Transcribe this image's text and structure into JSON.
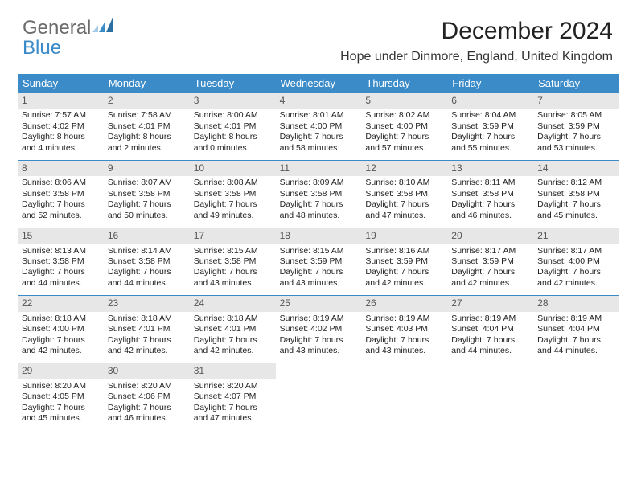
{
  "brand": {
    "line1": "General",
    "line2": "Blue",
    "icon_colors": [
      "#a7cbe6",
      "#3b8bc8",
      "#2b6fa3"
    ]
  },
  "title": "December 2024",
  "location": "Hope under Dinmore, England, United Kingdom",
  "colors": {
    "header_bg": "#3b8bc8",
    "daynum_bg": "#e7e7e7",
    "rule": "#3b8bc8"
  },
  "day_headers": [
    "Sunday",
    "Monday",
    "Tuesday",
    "Wednesday",
    "Thursday",
    "Friday",
    "Saturday"
  ],
  "weeks": [
    [
      {
        "n": "1",
        "sr": "Sunrise: 7:57 AM",
        "ss": "Sunset: 4:02 PM",
        "d1": "Daylight: 8 hours",
        "d2": "and 4 minutes."
      },
      {
        "n": "2",
        "sr": "Sunrise: 7:58 AM",
        "ss": "Sunset: 4:01 PM",
        "d1": "Daylight: 8 hours",
        "d2": "and 2 minutes."
      },
      {
        "n": "3",
        "sr": "Sunrise: 8:00 AM",
        "ss": "Sunset: 4:01 PM",
        "d1": "Daylight: 8 hours",
        "d2": "and 0 minutes."
      },
      {
        "n": "4",
        "sr": "Sunrise: 8:01 AM",
        "ss": "Sunset: 4:00 PM",
        "d1": "Daylight: 7 hours",
        "d2": "and 58 minutes."
      },
      {
        "n": "5",
        "sr": "Sunrise: 8:02 AM",
        "ss": "Sunset: 4:00 PM",
        "d1": "Daylight: 7 hours",
        "d2": "and 57 minutes."
      },
      {
        "n": "6",
        "sr": "Sunrise: 8:04 AM",
        "ss": "Sunset: 3:59 PM",
        "d1": "Daylight: 7 hours",
        "d2": "and 55 minutes."
      },
      {
        "n": "7",
        "sr": "Sunrise: 8:05 AM",
        "ss": "Sunset: 3:59 PM",
        "d1": "Daylight: 7 hours",
        "d2": "and 53 minutes."
      }
    ],
    [
      {
        "n": "8",
        "sr": "Sunrise: 8:06 AM",
        "ss": "Sunset: 3:58 PM",
        "d1": "Daylight: 7 hours",
        "d2": "and 52 minutes."
      },
      {
        "n": "9",
        "sr": "Sunrise: 8:07 AM",
        "ss": "Sunset: 3:58 PM",
        "d1": "Daylight: 7 hours",
        "d2": "and 50 minutes."
      },
      {
        "n": "10",
        "sr": "Sunrise: 8:08 AM",
        "ss": "Sunset: 3:58 PM",
        "d1": "Daylight: 7 hours",
        "d2": "and 49 minutes."
      },
      {
        "n": "11",
        "sr": "Sunrise: 8:09 AM",
        "ss": "Sunset: 3:58 PM",
        "d1": "Daylight: 7 hours",
        "d2": "and 48 minutes."
      },
      {
        "n": "12",
        "sr": "Sunrise: 8:10 AM",
        "ss": "Sunset: 3:58 PM",
        "d1": "Daylight: 7 hours",
        "d2": "and 47 minutes."
      },
      {
        "n": "13",
        "sr": "Sunrise: 8:11 AM",
        "ss": "Sunset: 3:58 PM",
        "d1": "Daylight: 7 hours",
        "d2": "and 46 minutes."
      },
      {
        "n": "14",
        "sr": "Sunrise: 8:12 AM",
        "ss": "Sunset: 3:58 PM",
        "d1": "Daylight: 7 hours",
        "d2": "and 45 minutes."
      }
    ],
    [
      {
        "n": "15",
        "sr": "Sunrise: 8:13 AM",
        "ss": "Sunset: 3:58 PM",
        "d1": "Daylight: 7 hours",
        "d2": "and 44 minutes."
      },
      {
        "n": "16",
        "sr": "Sunrise: 8:14 AM",
        "ss": "Sunset: 3:58 PM",
        "d1": "Daylight: 7 hours",
        "d2": "and 44 minutes."
      },
      {
        "n": "17",
        "sr": "Sunrise: 8:15 AM",
        "ss": "Sunset: 3:58 PM",
        "d1": "Daylight: 7 hours",
        "d2": "and 43 minutes."
      },
      {
        "n": "18",
        "sr": "Sunrise: 8:15 AM",
        "ss": "Sunset: 3:59 PM",
        "d1": "Daylight: 7 hours",
        "d2": "and 43 minutes."
      },
      {
        "n": "19",
        "sr": "Sunrise: 8:16 AM",
        "ss": "Sunset: 3:59 PM",
        "d1": "Daylight: 7 hours",
        "d2": "and 42 minutes."
      },
      {
        "n": "20",
        "sr": "Sunrise: 8:17 AM",
        "ss": "Sunset: 3:59 PM",
        "d1": "Daylight: 7 hours",
        "d2": "and 42 minutes."
      },
      {
        "n": "21",
        "sr": "Sunrise: 8:17 AM",
        "ss": "Sunset: 4:00 PM",
        "d1": "Daylight: 7 hours",
        "d2": "and 42 minutes."
      }
    ],
    [
      {
        "n": "22",
        "sr": "Sunrise: 8:18 AM",
        "ss": "Sunset: 4:00 PM",
        "d1": "Daylight: 7 hours",
        "d2": "and 42 minutes."
      },
      {
        "n": "23",
        "sr": "Sunrise: 8:18 AM",
        "ss": "Sunset: 4:01 PM",
        "d1": "Daylight: 7 hours",
        "d2": "and 42 minutes."
      },
      {
        "n": "24",
        "sr": "Sunrise: 8:18 AM",
        "ss": "Sunset: 4:01 PM",
        "d1": "Daylight: 7 hours",
        "d2": "and 42 minutes."
      },
      {
        "n": "25",
        "sr": "Sunrise: 8:19 AM",
        "ss": "Sunset: 4:02 PM",
        "d1": "Daylight: 7 hours",
        "d2": "and 43 minutes."
      },
      {
        "n": "26",
        "sr": "Sunrise: 8:19 AM",
        "ss": "Sunset: 4:03 PM",
        "d1": "Daylight: 7 hours",
        "d2": "and 43 minutes."
      },
      {
        "n": "27",
        "sr": "Sunrise: 8:19 AM",
        "ss": "Sunset: 4:04 PM",
        "d1": "Daylight: 7 hours",
        "d2": "and 44 minutes."
      },
      {
        "n": "28",
        "sr": "Sunrise: 8:19 AM",
        "ss": "Sunset: 4:04 PM",
        "d1": "Daylight: 7 hours",
        "d2": "and 44 minutes."
      }
    ],
    [
      {
        "n": "29",
        "sr": "Sunrise: 8:20 AM",
        "ss": "Sunset: 4:05 PM",
        "d1": "Daylight: 7 hours",
        "d2": "and 45 minutes."
      },
      {
        "n": "30",
        "sr": "Sunrise: 8:20 AM",
        "ss": "Sunset: 4:06 PM",
        "d1": "Daylight: 7 hours",
        "d2": "and 46 minutes."
      },
      {
        "n": "31",
        "sr": "Sunrise: 8:20 AM",
        "ss": "Sunset: 4:07 PM",
        "d1": "Daylight: 7 hours",
        "d2": "and 47 minutes."
      },
      null,
      null,
      null,
      null
    ]
  ]
}
